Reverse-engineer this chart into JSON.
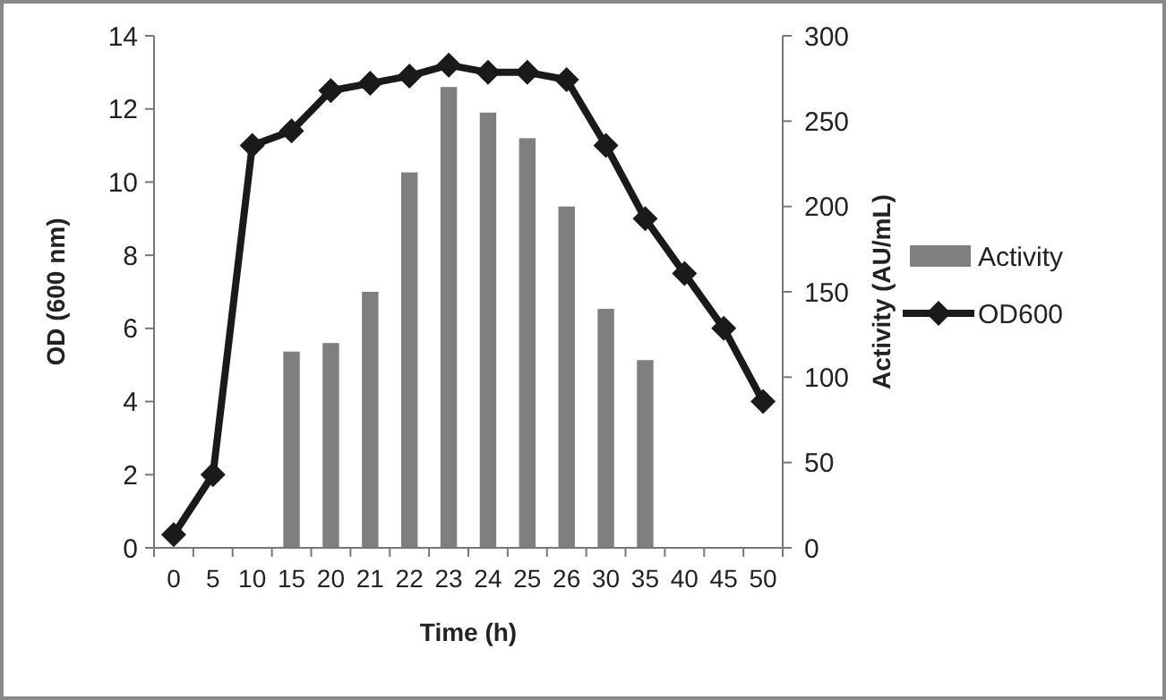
{
  "chart_data": {
    "type": "bar",
    "xlabel": "Time (h)",
    "ylabel": "OD (600 nm)",
    "y2label": "Activity (AU/mL)",
    "categories": [
      "0",
      "5",
      "10",
      "15",
      "20",
      "21",
      "22",
      "23",
      "24",
      "25",
      "26",
      "30",
      "35",
      "40",
      "45",
      "50"
    ],
    "series": [
      {
        "name": "Activity",
        "axis": "y2",
        "color": "#7f7f7f",
        "values": [
          null,
          null,
          null,
          115,
          120,
          150,
          220,
          270,
          255,
          240,
          200,
          140,
          110,
          null,
          null,
          null
        ]
      },
      {
        "name": "OD600",
        "type": "line",
        "axis": "y",
        "color": "#1a1a1a",
        "marker": "diamond",
        "values": [
          0.36,
          2.0,
          11.0,
          11.4,
          12.5,
          12.7,
          12.9,
          13.2,
          13.0,
          13.0,
          12.8,
          11.0,
          9.0,
          7.5,
          6.0,
          4.0
        ]
      }
    ],
    "ylim": [
      0,
      14
    ],
    "yticks": [
      0,
      2,
      4,
      6,
      8,
      10,
      12,
      14
    ],
    "y2lim": [
      0,
      300
    ],
    "y2ticks": [
      0,
      50,
      100,
      150,
      200,
      250,
      300
    ],
    "grid": false,
    "legend": "right"
  }
}
